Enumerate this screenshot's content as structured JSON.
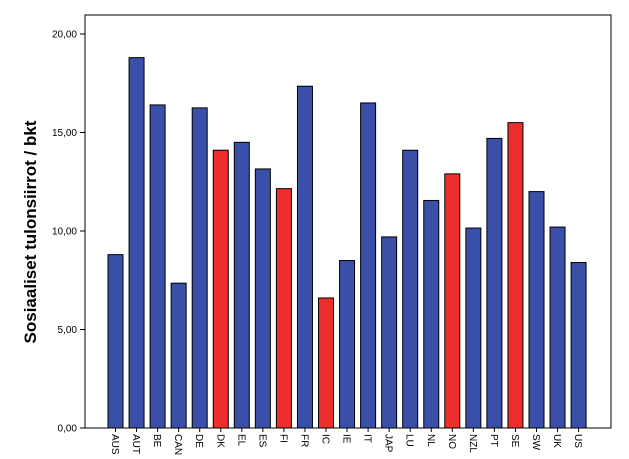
{
  "chart_data": {
    "type": "bar",
    "title": "",
    "xlabel": "",
    "ylabel": "Sosiaaliset tulonsiirrot / bkt",
    "ylim": [
      0,
      20
    ],
    "yticks": [
      "0,00",
      "5,00",
      "10,00",
      "15,00",
      "20,00"
    ],
    "grid": false,
    "colors": {
      "default": "#3a4fa8",
      "highlight": "#ee2d2d",
      "border": "#000000"
    },
    "categories": [
      "AUS",
      "AUT",
      "BE",
      "CAN",
      "DE",
      "DK",
      "EL",
      "ES",
      "FI",
      "FR",
      "IC",
      "IE",
      "IT",
      "JAP",
      "LU",
      "NL",
      "NO",
      "NZL",
      "PT",
      "SE",
      "SW",
      "UK",
      "US"
    ],
    "values": [
      8.8,
      18.8,
      16.4,
      7.35,
      16.25,
      14.1,
      14.5,
      13.15,
      12.15,
      17.35,
      6.6,
      8.5,
      16.5,
      9.7,
      14.1,
      11.55,
      12.9,
      10.15,
      14.7,
      15.5,
      12.0,
      10.2,
      8.4
    ],
    "highlighted": [
      "DK",
      "FI",
      "IC",
      "NO",
      "SE"
    ]
  }
}
